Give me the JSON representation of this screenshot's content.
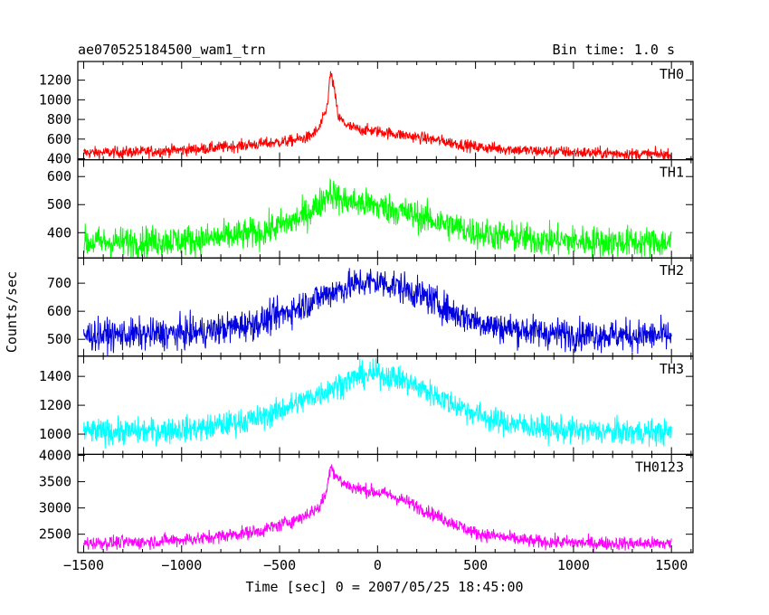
{
  "header": {
    "title": "ae070525184500_wam1_trn",
    "bin_time": "Bin time: 1.0 s"
  },
  "chart_data": {
    "type": "line",
    "title": "ae070525184500_wam1_trn",
    "subtitle": "Bin time: 1.0 s",
    "xlabel": "Time [sec] 0 = 2007/05/25 18:45:00",
    "ylabel": "Counts/sec",
    "xlim": [
      -1530,
      1610
    ],
    "xticks": [
      -1500,
      -1000,
      -500,
      0,
      500,
      1000,
      1500
    ],
    "xtick_labels": [
      "−1500",
      "−1000",
      "−500",
      "0",
      "500",
      "1000",
      "1500"
    ],
    "grid": false,
    "panels": [
      {
        "name": "TH0",
        "color": "#ff0000",
        "ylim": [
          390,
          1390
        ],
        "yticks": [
          400,
          600,
          800,
          1000,
          1200
        ],
        "series": {
          "x": [
            -1500,
            -1200,
            -900,
            -600,
            -450,
            -350,
            -300,
            -260,
            -240,
            -225,
            -200,
            -150,
            -100,
            0,
            100,
            300,
            500,
            800,
            1100,
            1500
          ],
          "y": [
            460,
            470,
            500,
            550,
            580,
            620,
            700,
            900,
            1270,
            1150,
            820,
            730,
            700,
            680,
            650,
            590,
            520,
            480,
            460,
            440
          ]
        },
        "noise": 30
      },
      {
        "name": "TH1",
        "color": "#00ff00",
        "ylim": [
          310,
          660
        ],
        "yticks": [
          400,
          500,
          600
        ],
        "series": {
          "x": [
            -1500,
            -1200,
            -900,
            -600,
            -400,
            -300,
            -240,
            -200,
            -100,
            0,
            100,
            200,
            300,
            500,
            800,
            1100,
            1500
          ],
          "y": [
            365,
            368,
            375,
            400,
            450,
            500,
            550,
            520,
            505,
            495,
            480,
            460,
            440,
            400,
            375,
            368,
            365
          ]
        },
        "noise": 28
      },
      {
        "name": "TH2",
        "color": "#0000e0",
        "ylim": [
          440,
          790
        ],
        "yticks": [
          500,
          600,
          700
        ],
        "series": {
          "x": [
            -1500,
            -1200,
            -900,
            -600,
            -400,
            -250,
            -100,
            0,
            100,
            250,
            400,
            600,
            900,
            1200,
            1500
          ],
          "y": [
            515,
            517,
            525,
            560,
            615,
            665,
            700,
            705,
            690,
            650,
            590,
            545,
            520,
            515,
            512
          ]
        },
        "noise": 28
      },
      {
        "name": "TH3",
        "color": "#00ffff",
        "ylim": [
          860,
          1540
        ],
        "yticks": [
          1000,
          1200,
          1400
        ],
        "series": {
          "x": [
            -1500,
            -1200,
            -900,
            -600,
            -400,
            -250,
            -100,
            0,
            100,
            250,
            400,
            600,
            900,
            1200,
            1500
          ],
          "y": [
            1015,
            1020,
            1040,
            1110,
            1220,
            1310,
            1400,
            1420,
            1390,
            1300,
            1200,
            1090,
            1030,
            1015,
            1010
          ]
        },
        "noise": 45
      },
      {
        "name": "TH0123",
        "color": "#ff00ff",
        "ylim": [
          2150,
          4020
        ],
        "yticks": [
          2500,
          3000,
          3500,
          4000
        ],
        "series": {
          "x": [
            -1500,
            -1200,
            -900,
            -600,
            -400,
            -300,
            -260,
            -240,
            -220,
            -180,
            -120,
            -50,
            50,
            150,
            300,
            500,
            800,
            1100,
            1500
          ],
          "y": [
            2330,
            2350,
            2420,
            2560,
            2800,
            3000,
            3300,
            3850,
            3650,
            3480,
            3380,
            3330,
            3260,
            3120,
            2850,
            2520,
            2360,
            2330,
            2320
          ]
        },
        "noise": 65
      }
    ]
  }
}
